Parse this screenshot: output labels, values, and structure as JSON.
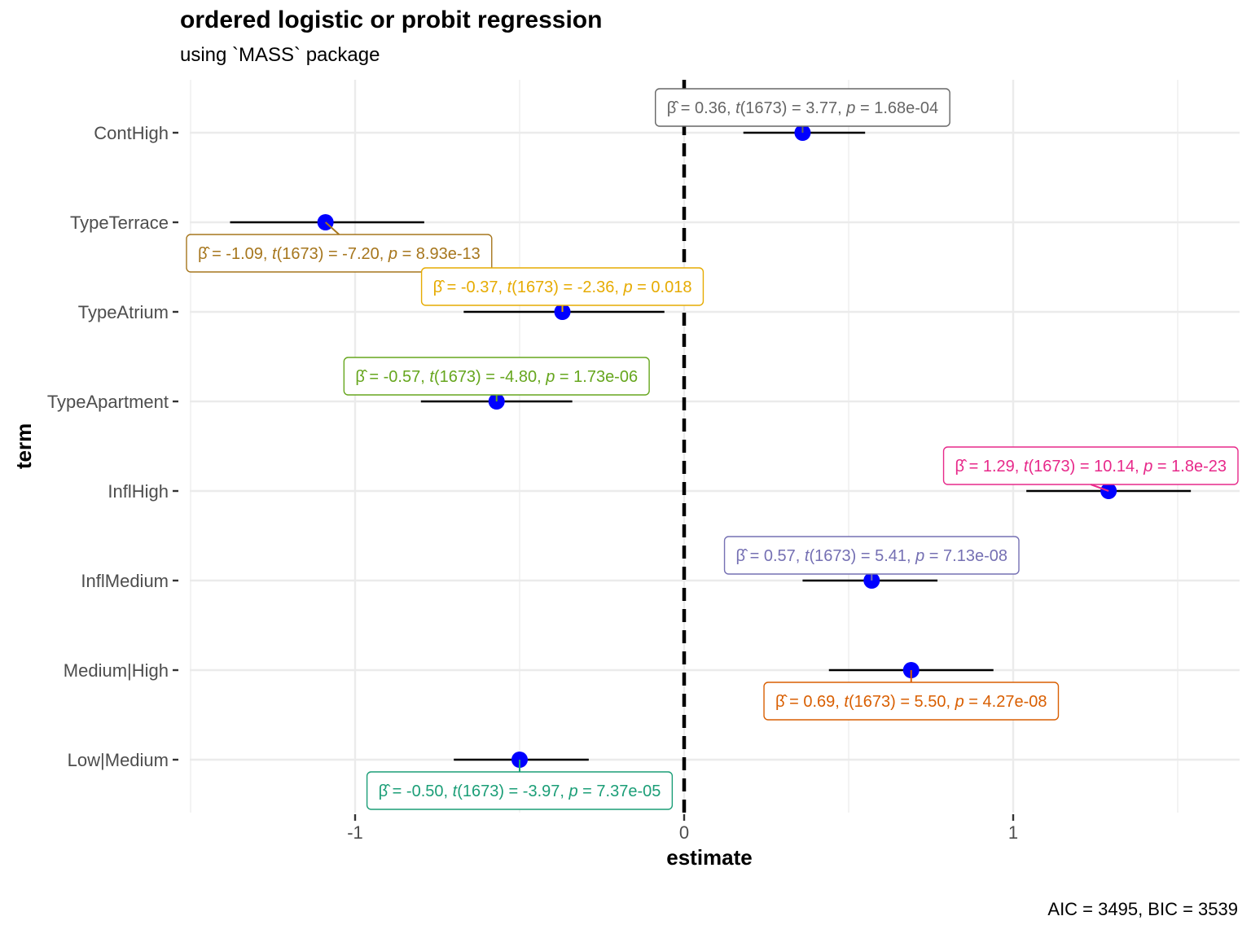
{
  "chart_data": {
    "type": "scatter",
    "title": "ordered logistic or probit regression",
    "subtitle": "using `MASS` package",
    "xlabel": "estimate",
    "ylabel": "term",
    "caption": "AIC = 3495, BIC = 3539",
    "xlim": [
      -1.5,
      1.68
    ],
    "xticks": [
      -1,
      0,
      1
    ],
    "xtick_labels": [
      "-1",
      "0",
      "1"
    ],
    "reference_line": 0,
    "grid": true,
    "point_color": "#0000ff",
    "terms": [
      {
        "term": "ContHigh",
        "estimate": 0.36,
        "conf_low": 0.18,
        "conf_high": 0.55,
        "label": {
          "beta": "0.36",
          "t": "3.77",
          "p": "1.68e-04",
          "df": "1673"
        },
        "color": "#666666",
        "label_side": "above"
      },
      {
        "term": "TypeTerrace",
        "estimate": -1.09,
        "conf_low": -1.38,
        "conf_high": -0.79,
        "label": {
          "beta": "-1.09",
          "t": "-7.20",
          "p": "8.93e-13",
          "df": "1673"
        },
        "color": "#a6761d",
        "label_side": "below"
      },
      {
        "term": "TypeAtrium",
        "estimate": -0.37,
        "conf_low": -0.67,
        "conf_high": -0.06,
        "label": {
          "beta": "-0.37",
          "t": "-2.36",
          "p": "0.018",
          "df": "1673"
        },
        "color": "#e6ab02",
        "label_side": "above"
      },
      {
        "term": "TypeApartment",
        "estimate": -0.57,
        "conf_low": -0.8,
        "conf_high": -0.34,
        "label": {
          "beta": "-0.57",
          "t": "-4.80",
          "p": "1.73e-06",
          "df": "1673"
        },
        "color": "#66a61e",
        "label_side": "above"
      },
      {
        "term": "InflHigh",
        "estimate": 1.29,
        "conf_low": 1.04,
        "conf_high": 1.54,
        "label": {
          "beta": "1.29",
          "t": "10.14",
          "p": "1.8e-23",
          "df": "1673"
        },
        "color": "#e7298a",
        "label_side": "above"
      },
      {
        "term": "InflMedium",
        "estimate": 0.57,
        "conf_low": 0.36,
        "conf_high": 0.77,
        "label": {
          "beta": "0.57",
          "t": "5.41",
          "p": "7.13e-08",
          "df": "1673"
        },
        "color": "#7570b3",
        "label_side": "above"
      },
      {
        "term": "Medium|High",
        "estimate": 0.69,
        "conf_low": 0.44,
        "conf_high": 0.94,
        "label": {
          "beta": "0.69",
          "t": "5.50",
          "p": "4.27e-08",
          "df": "1673"
        },
        "color": "#d95f02",
        "label_side": "below"
      },
      {
        "term": "Low|Medium",
        "estimate": -0.5,
        "conf_low": -0.7,
        "conf_high": -0.29,
        "label": {
          "beta": "-0.50",
          "t": "-3.97",
          "p": "7.37e-05",
          "df": "1673"
        },
        "color": "#1b9e77",
        "label_side": "below"
      }
    ]
  }
}
